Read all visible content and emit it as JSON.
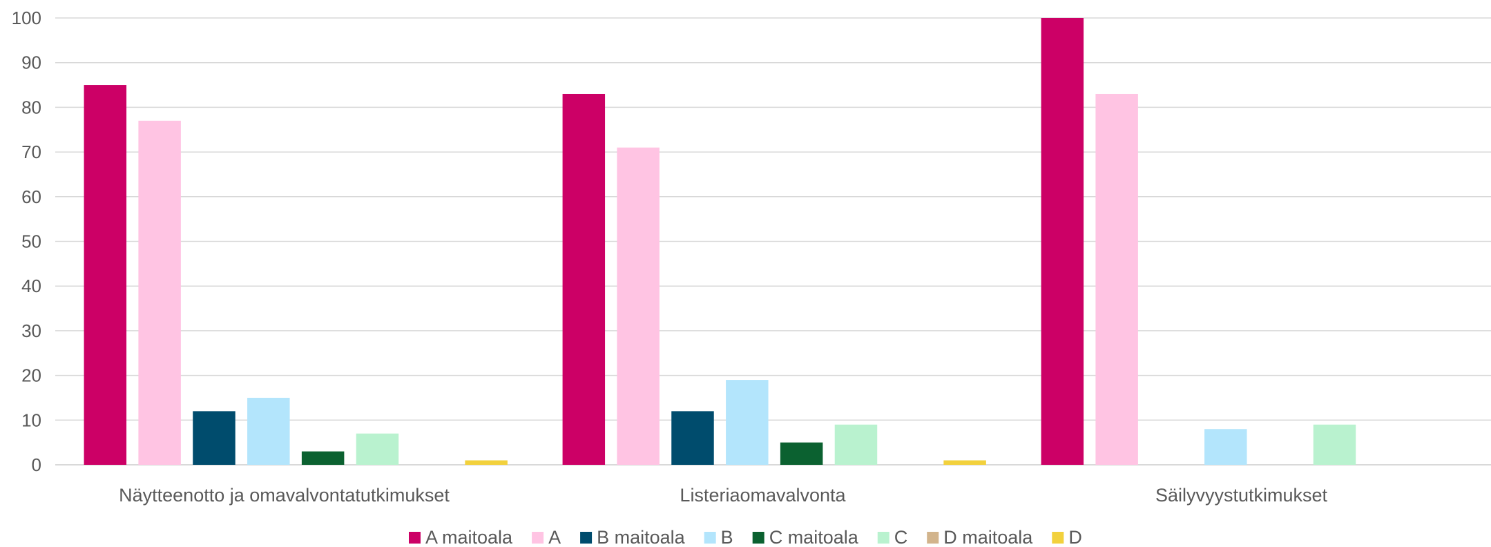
{
  "chart_data": {
    "type": "bar",
    "title": "",
    "xlabel": "",
    "ylabel": "",
    "ylim": [
      0,
      100
    ],
    "yticks": [
      0,
      10,
      20,
      30,
      40,
      50,
      60,
      70,
      80,
      90,
      100
    ],
    "grid": true,
    "legend_position": "bottom",
    "categories": [
      "Näytteenotto ja omavalvontatutkimukset",
      "Listeriaomavalvonta",
      "Säilyvyystutkimukset"
    ],
    "series": [
      {
        "name": "A maitoala",
        "color": "#cc0066",
        "values": [
          85,
          83,
          100
        ]
      },
      {
        "name": "A",
        "color": "#ffc4e3",
        "values": [
          77,
          71,
          83
        ]
      },
      {
        "name": "B maitoala",
        "color": "#004c6d",
        "values": [
          12,
          12,
          0
        ]
      },
      {
        "name": "B",
        "color": "#b3e5fc",
        "values": [
          15,
          19,
          8
        ]
      },
      {
        "name": "C maitoala",
        "color": "#0b6130",
        "values": [
          3,
          5,
          0
        ]
      },
      {
        "name": "C",
        "color": "#b9f2cf",
        "values": [
          7,
          9,
          9
        ]
      },
      {
        "name": "D maitoala",
        "color": "#d2b48c",
        "values": [
          0,
          0,
          0
        ]
      },
      {
        "name": "D",
        "color": "#f2d13d",
        "values": [
          1,
          1,
          0
        ]
      }
    ]
  }
}
